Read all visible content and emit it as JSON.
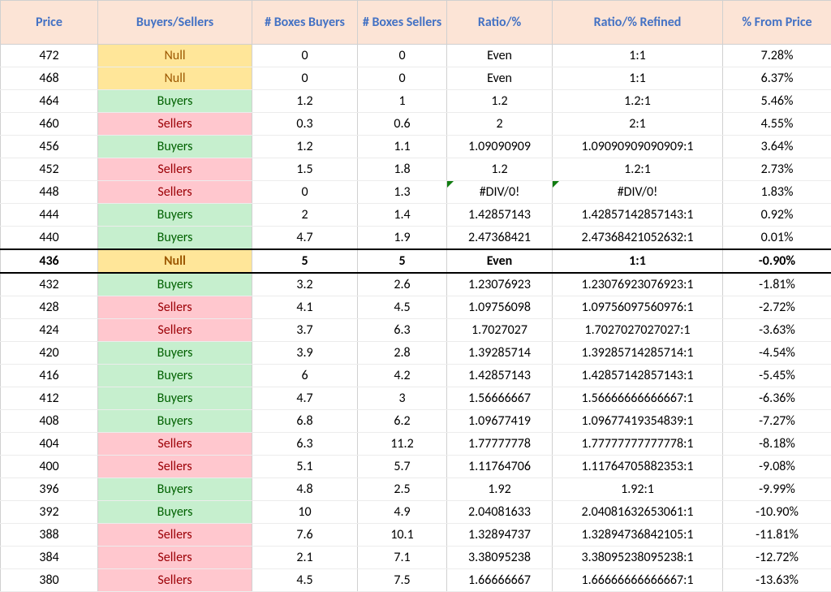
{
  "table": {
    "columns": [
      {
        "key": "price",
        "label": "Price",
        "class": "col-price"
      },
      {
        "key": "bs",
        "label": "Buyers/Sellers",
        "class": "col-bs"
      },
      {
        "key": "bb",
        "label": "# Boxes Buyers",
        "class": "col-bb"
      },
      {
        "key": "sb",
        "label": "# Boxes Sellers",
        "class": "col-sb"
      },
      {
        "key": "ratio",
        "label": "Ratio/%",
        "class": "col-ratio"
      },
      {
        "key": "refined",
        "label": "Ratio/% Refined",
        "class": "col-refined"
      },
      {
        "key": "pct",
        "label": "% From Price",
        "class": "col-pct"
      }
    ],
    "header_bg": "#fce4d6",
    "header_fg": "#4472c4",
    "bs_colors": {
      "Null": {
        "bg": "#ffe699",
        "fg": "#9c5700"
      },
      "Buyers": {
        "bg": "#c6efce",
        "fg": "#006100"
      },
      "Sellers": {
        "bg": "#ffc7ce",
        "fg": "#9c0006"
      }
    },
    "highlight_border": "#000000",
    "rows": [
      {
        "price": "472",
        "bs": "Null",
        "bb": "0",
        "sb": "0",
        "ratio": "Even",
        "refined": "1:1",
        "pct": "7.28%"
      },
      {
        "price": "468",
        "bs": "Null",
        "bb": "0",
        "sb": "0",
        "ratio": "Even",
        "refined": "1:1",
        "pct": "6.37%"
      },
      {
        "price": "464",
        "bs": "Buyers",
        "bb": "1.2",
        "sb": "1",
        "ratio": "1.2",
        "refined": "1.2:1",
        "pct": "5.46%"
      },
      {
        "price": "460",
        "bs": "Sellers",
        "bb": "0.3",
        "sb": "0.6",
        "ratio": "2",
        "refined": "2:1",
        "pct": "4.55%"
      },
      {
        "price": "456",
        "bs": "Buyers",
        "bb": "1.2",
        "sb": "1.1",
        "ratio": "1.09090909",
        "refined": "1.09090909090909:1",
        "pct": "3.64%"
      },
      {
        "price": "452",
        "bs": "Sellers",
        "bb": "1.5",
        "sb": "1.8",
        "ratio": "1.2",
        "refined": "1.2:1",
        "pct": "2.73%"
      },
      {
        "price": "448",
        "bs": "Sellers",
        "bb": "0",
        "sb": "1.3",
        "ratio": "#DIV/0!",
        "refined": "#DIV/0!",
        "pct": "1.83%",
        "err": true
      },
      {
        "price": "444",
        "bs": "Buyers",
        "bb": "2",
        "sb": "1.4",
        "ratio": "1.42857143",
        "refined": "1.42857142857143:1",
        "pct": "0.92%"
      },
      {
        "price": "440",
        "bs": "Buyers",
        "bb": "4.7",
        "sb": "1.9",
        "ratio": "2.47368421",
        "refined": "2.47368421052632:1",
        "pct": "0.01%"
      },
      {
        "price": "436",
        "bs": "Null",
        "bb": "5",
        "sb": "5",
        "ratio": "Even",
        "refined": "1:1",
        "pct": "-0.90%",
        "highlight": true
      },
      {
        "price": "432",
        "bs": "Buyers",
        "bb": "3.2",
        "sb": "2.6",
        "ratio": "1.23076923",
        "refined": "1.23076923076923:1",
        "pct": "-1.81%"
      },
      {
        "price": "428",
        "bs": "Sellers",
        "bb": "4.1",
        "sb": "4.5",
        "ratio": "1.09756098",
        "refined": "1.09756097560976:1",
        "pct": "-2.72%"
      },
      {
        "price": "424",
        "bs": "Sellers",
        "bb": "3.7",
        "sb": "6.3",
        "ratio": "1.7027027",
        "refined": "1.7027027027027:1",
        "pct": "-3.63%"
      },
      {
        "price": "420",
        "bs": "Buyers",
        "bb": "3.9",
        "sb": "2.8",
        "ratio": "1.39285714",
        "refined": "1.39285714285714:1",
        "pct": "-4.54%"
      },
      {
        "price": "416",
        "bs": "Buyers",
        "bb": "6",
        "sb": "4.2",
        "ratio": "1.42857143",
        "refined": "1.42857142857143:1",
        "pct": "-5.45%"
      },
      {
        "price": "412",
        "bs": "Buyers",
        "bb": "4.7",
        "sb": "3",
        "ratio": "1.56666667",
        "refined": "1.56666666666667:1",
        "pct": "-6.36%"
      },
      {
        "price": "408",
        "bs": "Buyers",
        "bb": "6.8",
        "sb": "6.2",
        "ratio": "1.09677419",
        "refined": "1.09677419354839:1",
        "pct": "-7.27%"
      },
      {
        "price": "404",
        "bs": "Sellers",
        "bb": "6.3",
        "sb": "11.2",
        "ratio": "1.77777778",
        "refined": "1.77777777777778:1",
        "pct": "-8.18%"
      },
      {
        "price": "400",
        "bs": "Sellers",
        "bb": "5.1",
        "sb": "5.7",
        "ratio": "1.11764706",
        "refined": "1.11764705882353:1",
        "pct": "-9.08%"
      },
      {
        "price": "396",
        "bs": "Buyers",
        "bb": "4.8",
        "sb": "2.5",
        "ratio": "1.92",
        "refined": "1.92:1",
        "pct": "-9.99%"
      },
      {
        "price": "392",
        "bs": "Buyers",
        "bb": "10",
        "sb": "4.9",
        "ratio": "2.04081633",
        "refined": "2.04081632653061:1",
        "pct": "-10.90%"
      },
      {
        "price": "388",
        "bs": "Sellers",
        "bb": "7.6",
        "sb": "10.1",
        "ratio": "1.32894737",
        "refined": "1.32894736842105:1",
        "pct": "-11.81%"
      },
      {
        "price": "384",
        "bs": "Sellers",
        "bb": "2.1",
        "sb": "7.1",
        "ratio": "3.38095238",
        "refined": "3.38095238095238:1",
        "pct": "-12.72%"
      },
      {
        "price": "380",
        "bs": "Sellers",
        "bb": "4.5",
        "sb": "7.5",
        "ratio": "1.66666667",
        "refined": "1.66666666666667:1",
        "pct": "-13.63%"
      }
    ]
  }
}
